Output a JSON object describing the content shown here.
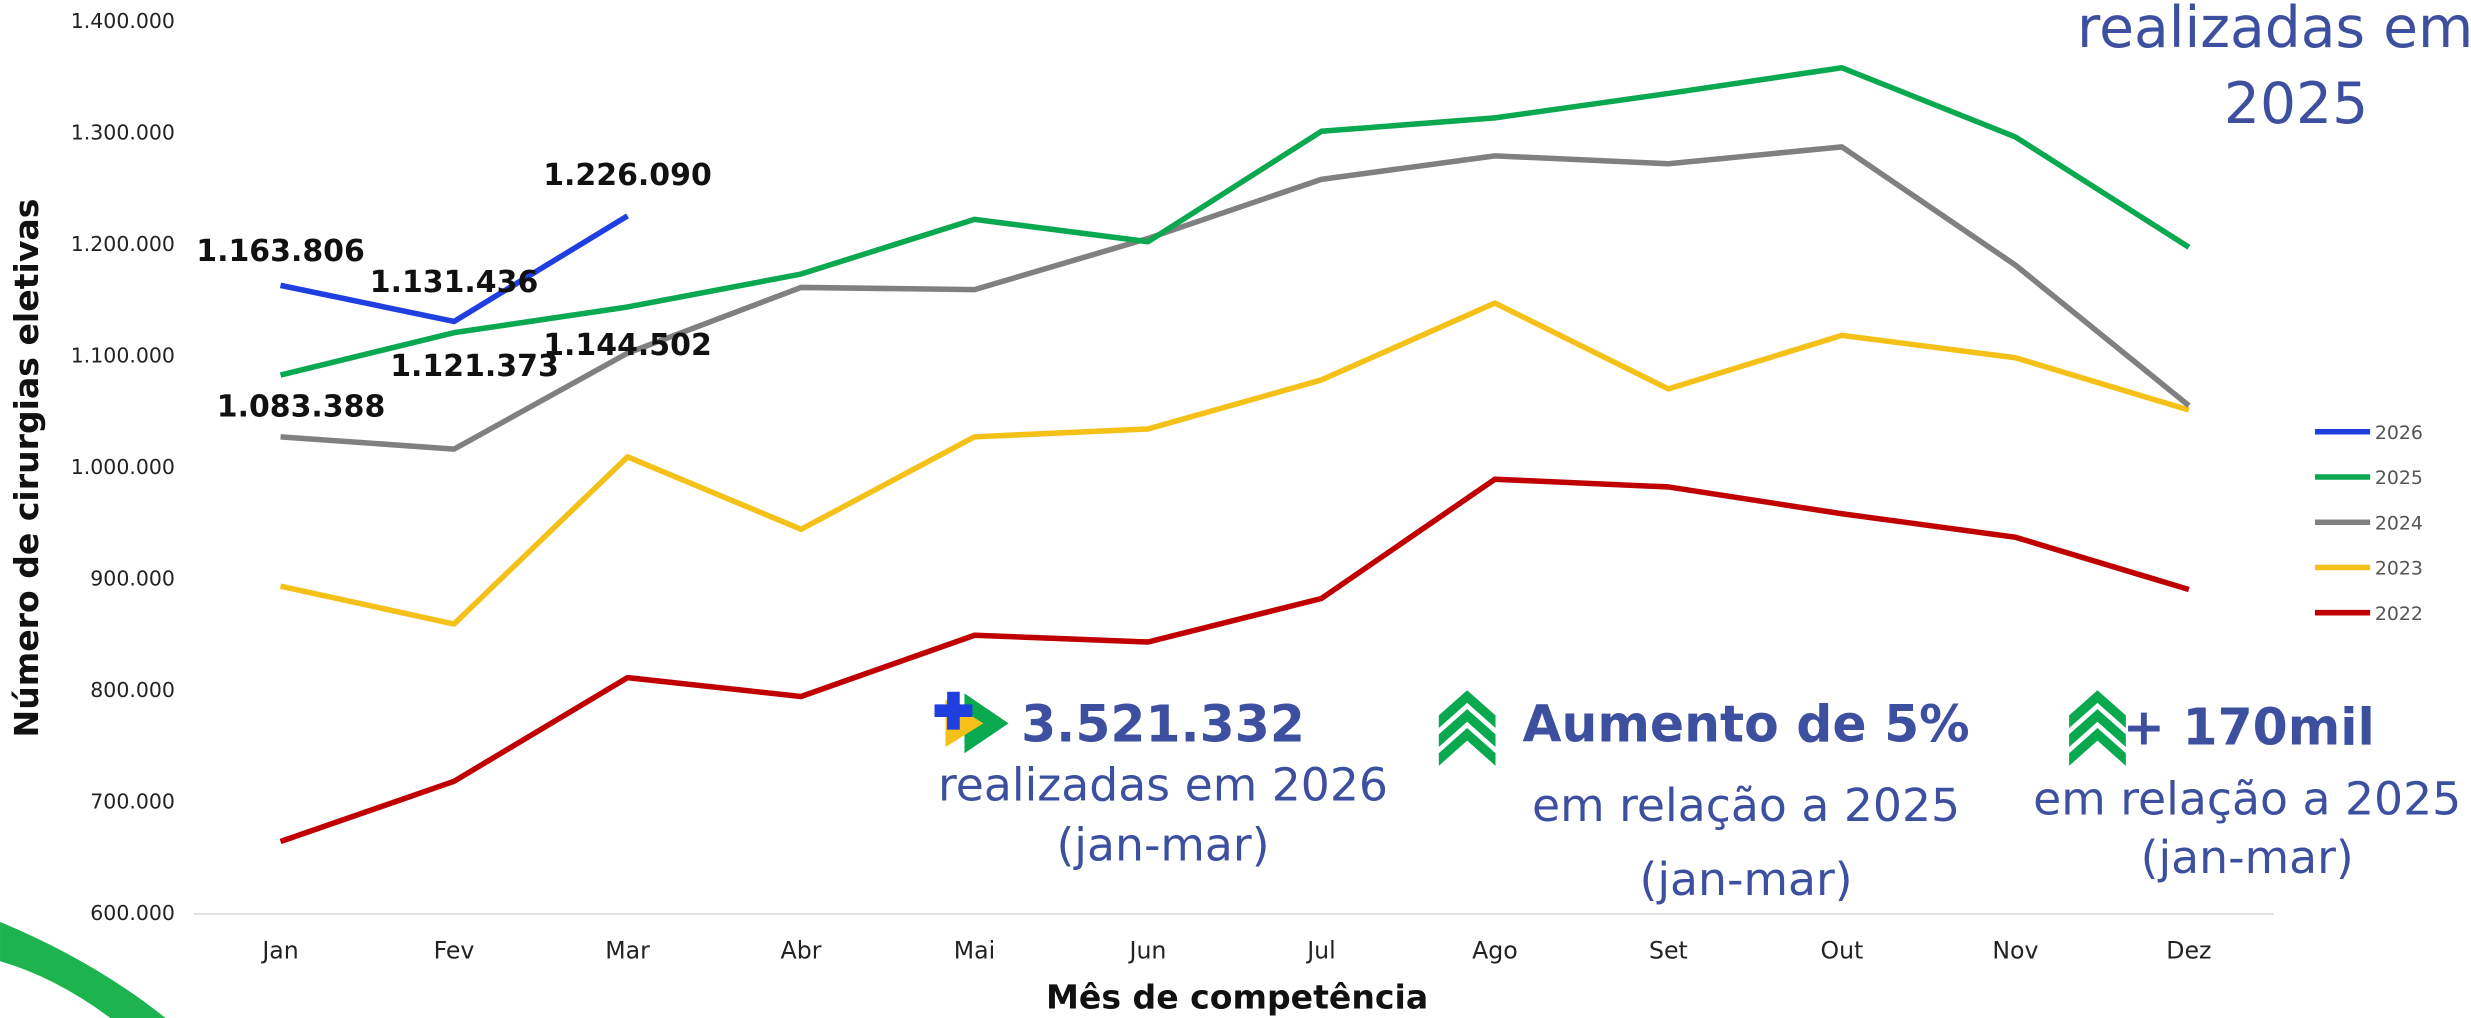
{
  "chart_data": {
    "type": "line",
    "xlabel": "Mês de competência",
    "ylabel": "Número de cirurgias eletivas",
    "categories": [
      "Jan",
      "Fev",
      "Mar",
      "Abr",
      "Mai",
      "Jun",
      "Jul",
      "Ago",
      "Set",
      "Out",
      "Nov",
      "Dez"
    ],
    "series": [
      {
        "name": "2026",
        "color": "#1f3fe0",
        "values": [
          1163806,
          1131436,
          1226090,
          null,
          null,
          null,
          null,
          null,
          null,
          null,
          null,
          null
        ],
        "value_labels": [
          "1.163.806",
          "1.131.436",
          "1.226.090",
          null,
          null,
          null,
          null,
          null,
          null,
          null,
          null,
          null
        ]
      },
      {
        "name": "2025",
        "color": "#0aa84f",
        "values": [
          1083388,
          1121373,
          1144502,
          1174000,
          1223000,
          1203000,
          1302000,
          1314000,
          1336000,
          1359000,
          1297000,
          1198000
        ],
        "value_labels": [
          "1.083.388",
          "1.121.373",
          "1.144.502",
          null,
          null,
          null,
          null,
          null,
          null,
          null,
          null,
          null
        ]
      },
      {
        "name": "2024",
        "color": "#808080",
        "values": [
          1028000,
          1017000,
          1103000,
          1162000,
          1160000,
          1206000,
          1259000,
          1280000,
          1273000,
          1288000,
          1182000,
          1056000
        ]
      },
      {
        "name": "2023",
        "color": "#f5c017",
        "values": [
          894000,
          860000,
          1010000,
          945000,
          1028000,
          1035000,
          1079000,
          1148000,
          1071000,
          1119000,
          1099000,
          1052000
        ]
      },
      {
        "name": "2022",
        "color": "#c00000",
        "values": [
          665000,
          719000,
          812000,
          795000,
          850000,
          844000,
          883000,
          990000,
          983000,
          959000,
          938000,
          891000
        ]
      }
    ],
    "ylim": [
      600000,
      1400000
    ],
    "yticks": [
      {
        "value": 600000,
        "label": "600.000"
      },
      {
        "value": 700000,
        "label": "700.000"
      },
      {
        "value": 800000,
        "label": "800.000"
      },
      {
        "value": 900000,
        "label": "900.000"
      },
      {
        "value": 1000000,
        "label": "1.000.000"
      },
      {
        "value": 1100000,
        "label": "1.100.000"
      },
      {
        "value": 1200000,
        "label": "1.200.000"
      },
      {
        "value": 1300000,
        "label": "1.300.000"
      },
      {
        "value": 1400000,
        "label": "1.400.000"
      }
    ],
    "legend": "right",
    "annotations": [
      "realizadas em",
      "2025",
      "3.521.332",
      "realizadas em 2026",
      "(jan-mar)",
      "Aumento de 5%",
      "em relação a 2025",
      "(jan-mar)",
      "+ 170mil",
      "em relação a 2025",
      "(jan-mar)"
    ]
  }
}
